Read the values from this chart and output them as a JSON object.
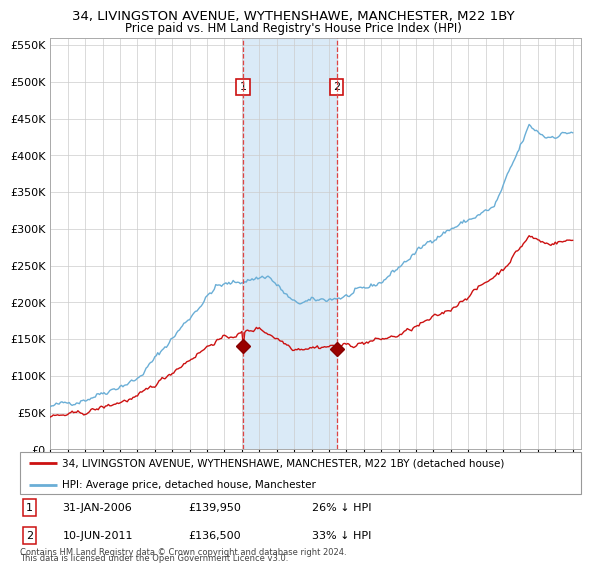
{
  "title": "34, LIVINGSTON AVENUE, WYTHENSHAWE, MANCHESTER, M22 1BY",
  "subtitle": "Price paid vs. HM Land Registry's House Price Index (HPI)",
  "legend_line1": "34, LIVINGSTON AVENUE, WYTHENSHAWE, MANCHESTER, M22 1BY (detached house)",
  "legend_line2": "HPI: Average price, detached house, Manchester",
  "footnote1": "Contains HM Land Registry data © Crown copyright and database right 2024.",
  "footnote2": "This data is licensed under the Open Government Licence v3.0.",
  "sale1_date": "31-JAN-2006",
  "sale1_price": 139950,
  "sale1_label": "26% ↓ HPI",
  "sale1_year": 2006.08,
  "sale2_date": "10-JUN-2011",
  "sale2_price": 136500,
  "sale2_label": "33% ↓ HPI",
  "sale2_year": 2011.44,
  "hpi_color": "#6aaed6",
  "property_color": "#cc1111",
  "vline_color": "#dd4444",
  "shade_color": "#daeaf7",
  "ylim": [
    0,
    560000
  ],
  "yticks": [
    0,
    50000,
    100000,
    150000,
    200000,
    250000,
    300000,
    350000,
    400000,
    450000,
    500000,
    550000
  ],
  "grid_color": "#cccccc",
  "bg_color": "#ffffff"
}
